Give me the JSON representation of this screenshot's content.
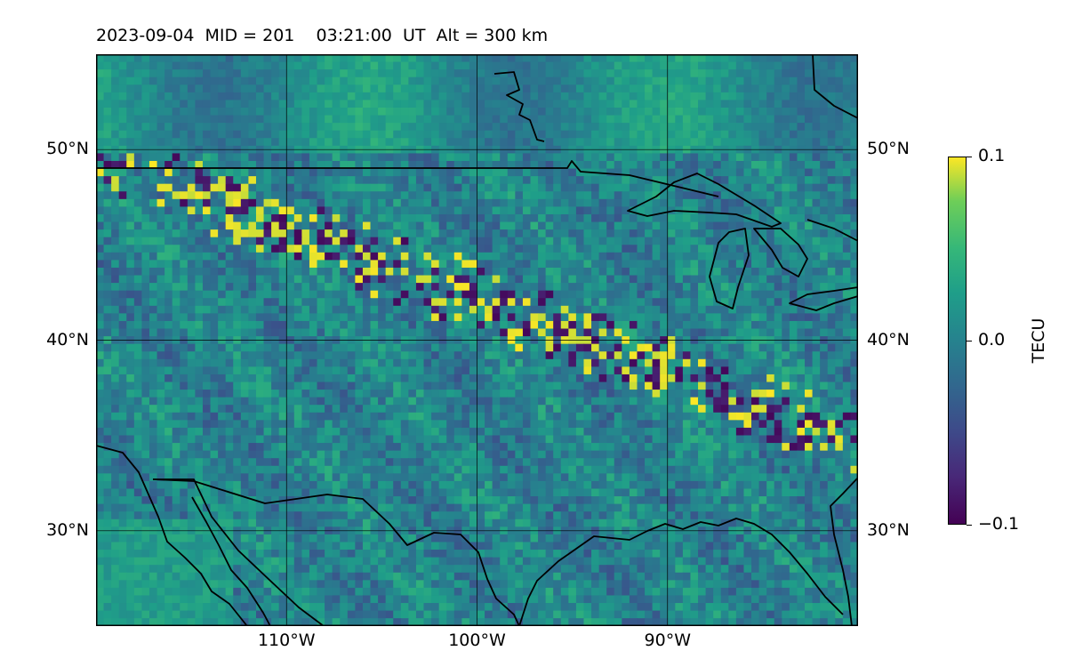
{
  "map": {
    "title": "2023-09-04  MID = 201    03:21:00  UT  Alt = 300 km",
    "projection": "equirectangular",
    "lon_range": [
      -120,
      -80
    ],
    "lat_range": [
      25,
      55
    ],
    "lat_ticks": [
      {
        "value": 50,
        "label": "50°N"
      },
      {
        "value": 40,
        "label": "40°N"
      },
      {
        "value": 30,
        "label": "30°N"
      }
    ],
    "lon_ticks": [
      {
        "value": -110,
        "label": "110°W"
      },
      {
        "value": -100,
        "label": "100°W"
      },
      {
        "value": -90,
        "label": "90°W"
      }
    ],
    "colorbar": {
      "label": "TECU",
      "colormap": "viridis",
      "vmin": -0.1,
      "vmax": 0.1,
      "ticks": [
        {
          "value": 0.1,
          "label": "0.1"
        },
        {
          "value": 0.0,
          "label": "0.0"
        },
        {
          "value": -0.1,
          "label": "−0.1"
        }
      ]
    },
    "colors": {
      "low": "#440154",
      "mid": "#21918c",
      "high": "#fde725",
      "coastline": "#000000",
      "grid": "#000000"
    },
    "feature": "band of alternating positive and negative TEC perturbations running northwest to southeast across the central United States",
    "features": [
      "coastlines",
      "international borders",
      "Great Lakes shorelines"
    ]
  }
}
